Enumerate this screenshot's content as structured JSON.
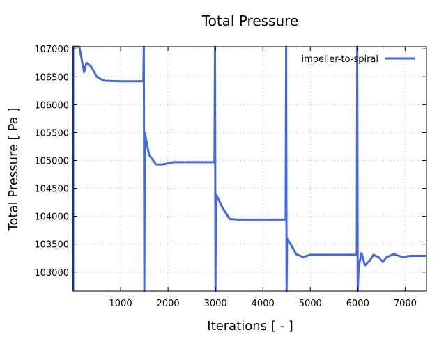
{
  "chart_data": {
    "type": "line",
    "title": "Total Pressure",
    "xlabel": "Iterations [ - ]",
    "ylabel": "Total Pressure [ Pa ]",
    "xlim": [
      0,
      7450
    ],
    "ylim": [
      102660,
      107040
    ],
    "xticks": [
      1000,
      2000,
      3000,
      4000,
      5000,
      6000,
      7000
    ],
    "yticks": [
      103000,
      103500,
      104000,
      104500,
      105000,
      105500,
      106000,
      106500,
      107000
    ],
    "grid": true,
    "legend_position": "top-right",
    "series": [
      {
        "name": "impeller-to-spiral",
        "color": "#4169e1",
        "x": [
          0,
          0,
          10,
          130,
          230,
          280,
          380,
          500,
          650,
          1000,
          1480,
          1490,
          1500,
          1510,
          1600,
          1750,
          1900,
          2100,
          2980,
          2990,
          3000,
          3010,
          3150,
          3300,
          3500,
          4480,
          4490,
          4500,
          4510,
          4600,
          4700,
          4850,
          5000,
          5980,
          5990,
          6000,
          6020,
          6080,
          6150,
          6250,
          6330,
          6450,
          6530,
          6600,
          6750,
          6950,
          7100,
          7450
        ],
        "y": [
          102660,
          107040,
          107040,
          107040,
          106580,
          106750,
          106680,
          106500,
          106430,
          106420,
          106420,
          107040,
          102660,
          105500,
          105100,
          104930,
          104930,
          104970,
          104970,
          107040,
          102660,
          104400,
          104150,
          103950,
          103940,
          103940,
          107040,
          102660,
          103600,
          103480,
          103320,
          103270,
          103310,
          103310,
          107040,
          102660,
          103100,
          103340,
          103120,
          103200,
          103310,
          103260,
          103180,
          103260,
          103320,
          103270,
          103290,
          103290
        ]
      }
    ]
  }
}
